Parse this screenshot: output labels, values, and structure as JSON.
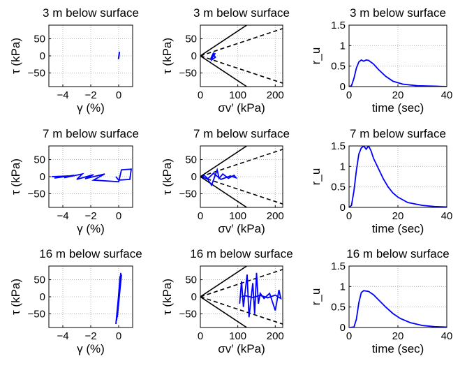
{
  "chart_data": [
    {
      "row": 0,
      "col": 0,
      "type": "line",
      "title": "3 m below surface",
      "xlabel": "γ  (%)",
      "ylabel": "τ  (kPa)",
      "xlim": [
        -5,
        1
      ],
      "ylim": [
        -90,
        90
      ],
      "xticks": [
        -4,
        -2,
        0
      ],
      "yticks": [
        -50,
        0,
        50
      ],
      "grid": true,
      "series": [
        {
          "color": "#0000ff",
          "points": [
            [
              -0.02,
              -10
            ],
            [
              0.05,
              12
            ],
            [
              0.0,
              -6
            ],
            [
              0.06,
              10
            ],
            [
              0.01,
              -4
            ],
            [
              0.05,
              8
            ]
          ]
        }
      ]
    },
    {
      "row": 0,
      "col": 1,
      "type": "line",
      "title": "3 m below surface",
      "xlabel": "σv′ (kPa)",
      "ylabel": "τ  (kPa)",
      "xlim": [
        0,
        220
      ],
      "ylim": [
        -90,
        90
      ],
      "xticks": [
        0,
        100,
        200
      ],
      "yticks": [
        -50,
        0,
        50
      ],
      "grid": true,
      "lines": [
        {
          "style": "solid",
          "points": [
            [
              0,
              0
            ],
            [
              220,
              160
            ]
          ]
        },
        {
          "style": "solid",
          "points": [
            [
              0,
              0
            ],
            [
              220,
              -160
            ]
          ]
        },
        {
          "style": "dashed",
          "points": [
            [
              0,
              0
            ],
            [
              220,
              80
            ]
          ]
        },
        {
          "style": "dashed",
          "points": [
            [
              0,
              0
            ],
            [
              220,
              -80
            ]
          ]
        }
      ],
      "series": [
        {
          "color": "#0000ff",
          "points": [
            [
              28,
              -10
            ],
            [
              40,
              8
            ],
            [
              32,
              -5
            ],
            [
              36,
              10
            ],
            [
              30,
              -12
            ],
            [
              40,
              -4
            ],
            [
              34,
              6
            ],
            [
              28,
              -8
            ],
            [
              38,
              2
            ]
          ]
        }
      ]
    },
    {
      "row": 0,
      "col": 2,
      "type": "line",
      "title": "3 m below surface",
      "xlabel": "time (sec)",
      "ylabel": "r_u",
      "xlim": [
        0,
        40
      ],
      "ylim": [
        0,
        1.5
      ],
      "xticks": [
        0,
        20,
        40
      ],
      "yticks": [
        0,
        0.5,
        1,
        1.5
      ],
      "grid": true,
      "series": [
        {
          "color": "#0000ff",
          "points": [
            [
              0,
              0
            ],
            [
              1,
              0.02
            ],
            [
              2,
              0.2
            ],
            [
              3,
              0.45
            ],
            [
              4,
              0.6
            ],
            [
              5,
              0.65
            ],
            [
              6,
              0.62
            ],
            [
              7,
              0.65
            ],
            [
              8,
              0.64
            ],
            [
              10,
              0.55
            ],
            [
              12,
              0.42
            ],
            [
              15,
              0.25
            ],
            [
              18,
              0.13
            ],
            [
              22,
              0.06
            ],
            [
              28,
              0.02
            ],
            [
              35,
              0.01
            ],
            [
              40,
              0.0
            ]
          ]
        }
      ]
    },
    {
      "row": 1,
      "col": 0,
      "type": "line",
      "title": "7 m below surface",
      "xlabel": "γ  (%)",
      "ylabel": "τ  (kPa)",
      "xlim": [
        -5,
        1
      ],
      "ylim": [
        -90,
        90
      ],
      "xticks": [
        -4,
        -2,
        0
      ],
      "yticks": [
        -50,
        0,
        50
      ],
      "grid": true,
      "series": [
        {
          "color": "#0000ff",
          "points": [
            [
              -4.8,
              0
            ],
            [
              -3.6,
              2
            ],
            [
              -4.6,
              -4
            ],
            [
              -3.2,
              4
            ],
            [
              -3.9,
              -3
            ],
            [
              -2.6,
              8
            ],
            [
              -3.0,
              -8
            ],
            [
              -1.8,
              6
            ],
            [
              -2.4,
              -6
            ],
            [
              -1.0,
              8
            ],
            [
              -1.8,
              -10
            ],
            [
              0.0,
              -15
            ],
            [
              0.2,
              20
            ],
            [
              0.9,
              22
            ],
            [
              0.8,
              -8
            ],
            [
              0.0,
              -10
            ],
            [
              -0.2,
              0
            ]
          ]
        }
      ]
    },
    {
      "row": 1,
      "col": 1,
      "type": "line",
      "title": "7 m below surface",
      "xlabel": "σv′ (kPa)",
      "ylabel": "τ  (kPa)",
      "xlim": [
        0,
        220
      ],
      "ylim": [
        -90,
        90
      ],
      "xticks": [
        0,
        100,
        200
      ],
      "yticks": [
        -50,
        0,
        50
      ],
      "grid": true,
      "lines": [
        {
          "style": "solid",
          "points": [
            [
              0,
              0
            ],
            [
              220,
              160
            ]
          ]
        },
        {
          "style": "solid",
          "points": [
            [
              0,
              0
            ],
            [
              220,
              -160
            ]
          ]
        },
        {
          "style": "dashed",
          "points": [
            [
              0,
              0
            ],
            [
              220,
              80
            ]
          ]
        },
        {
          "style": "dashed",
          "points": [
            [
              0,
              0
            ],
            [
              220,
              -80
            ]
          ]
        }
      ],
      "series": [
        {
          "color": "#0000ff",
          "points": [
            [
              5,
              0
            ],
            [
              20,
              -8
            ],
            [
              30,
              -25
            ],
            [
              45,
              20
            ],
            [
              50,
              -5
            ],
            [
              60,
              8
            ],
            [
              75,
              -5
            ],
            [
              90,
              4
            ],
            [
              95,
              -3
            ],
            [
              80,
              2
            ],
            [
              55,
              -8
            ],
            [
              35,
              10
            ],
            [
              20,
              -6
            ],
            [
              10,
              4
            ],
            [
              5,
              -2
            ]
          ]
        }
      ]
    },
    {
      "row": 1,
      "col": 2,
      "type": "line",
      "title": "7 m below surface",
      "xlabel": "time (sec)",
      "ylabel": "r_u",
      "xlim": [
        0,
        40
      ],
      "ylim": [
        0,
        1.5
      ],
      "xticks": [
        0,
        20,
        40
      ],
      "yticks": [
        0,
        0.5,
        1,
        1.5
      ],
      "grid": true,
      "series": [
        {
          "color": "#0000ff",
          "points": [
            [
              0,
              0
            ],
            [
              1,
              0.05
            ],
            [
              2,
              0.4
            ],
            [
              3,
              0.9
            ],
            [
              4,
              1.3
            ],
            [
              5,
              1.45
            ],
            [
              6,
              1.5
            ],
            [
              7,
              1.42
            ],
            [
              8,
              1.5
            ],
            [
              9,
              1.38
            ],
            [
              10,
              1.2
            ],
            [
              12,
              0.95
            ],
            [
              14,
              0.7
            ],
            [
              16,
              0.5
            ],
            [
              18,
              0.35
            ],
            [
              20,
              0.25
            ],
            [
              24,
              0.12
            ],
            [
              30,
              0.05
            ],
            [
              35,
              0.02
            ],
            [
              40,
              0.01
            ]
          ]
        }
      ]
    },
    {
      "row": 2,
      "col": 0,
      "type": "line",
      "title": "16 m below surface",
      "xlabel": "γ  (%)",
      "ylabel": "τ  (kPa)",
      "xlim": [
        -5,
        1
      ],
      "ylim": [
        -90,
        90
      ],
      "xticks": [
        -4,
        -2,
        0
      ],
      "yticks": [
        -50,
        0,
        50
      ],
      "grid": true,
      "series": [
        {
          "color": "#0000ff",
          "points": [
            [
              -0.2,
              -80
            ],
            [
              0.15,
              70
            ],
            [
              -0.1,
              -60
            ],
            [
              0.2,
              65
            ],
            [
              -0.15,
              -70
            ],
            [
              0.1,
              60
            ],
            [
              0.0,
              0
            ]
          ]
        }
      ]
    },
    {
      "row": 2,
      "col": 1,
      "type": "line",
      "title": "16 m below surface",
      "xlabel": "σv′ (kPa)",
      "ylabel": "τ  (kPa)",
      "xlim": [
        0,
        220
      ],
      "ylim": [
        -90,
        90
      ],
      "xticks": [
        0,
        100,
        200
      ],
      "yticks": [
        -50,
        0,
        50
      ],
      "grid": true,
      "lines": [
        {
          "style": "solid",
          "points": [
            [
              0,
              0
            ],
            [
              220,
              160
            ]
          ]
        },
        {
          "style": "solid",
          "points": [
            [
              0,
              0
            ],
            [
              220,
              -160
            ]
          ]
        },
        {
          "style": "dashed",
          "points": [
            [
              0,
              0
            ],
            [
              220,
              80
            ]
          ]
        },
        {
          "style": "dashed",
          "points": [
            [
              0,
              0
            ],
            [
              220,
              -80
            ]
          ]
        }
      ],
      "series": [
        {
          "color": "#0000ff",
          "points": [
            [
              105,
              -20
            ],
            [
              110,
              45
            ],
            [
              115,
              -30
            ],
            [
              125,
              65
            ],
            [
              130,
              -60
            ],
            [
              140,
              40
            ],
            [
              145,
              -50
            ],
            [
              150,
              70
            ],
            [
              155,
              -20
            ],
            [
              160,
              10
            ],
            [
              170,
              -5
            ],
            [
              185,
              10
            ],
            [
              200,
              -40
            ],
            [
              210,
              20
            ],
            [
              215,
              -5
            ],
            [
              200,
              5
            ],
            [
              180,
              -3
            ],
            [
              160,
              4
            ],
            [
              140,
              -2
            ],
            [
              120,
              3
            ],
            [
              110,
              0
            ]
          ]
        }
      ]
    },
    {
      "row": 2,
      "col": 2,
      "type": "line",
      "title": "16 m below surface",
      "xlabel": "time (sec)",
      "ylabel": "r_u",
      "xlim": [
        0,
        40
      ],
      "ylim": [
        0,
        1.5
      ],
      "xticks": [
        0,
        20,
        40
      ],
      "yticks": [
        0,
        0.5,
        1,
        1.5
      ],
      "grid": true,
      "series": [
        {
          "color": "#0000ff",
          "points": [
            [
              0,
              0
            ],
            [
              2,
              0.01
            ],
            [
              3,
              0.2
            ],
            [
              4,
              0.6
            ],
            [
              5,
              0.85
            ],
            [
              6,
              0.9
            ],
            [
              8,
              0.88
            ],
            [
              10,
              0.8
            ],
            [
              12,
              0.68
            ],
            [
              15,
              0.5
            ],
            [
              18,
              0.34
            ],
            [
              21,
              0.22
            ],
            [
              25,
              0.12
            ],
            [
              30,
              0.05
            ],
            [
              35,
              0.02
            ],
            [
              40,
              0.01
            ]
          ]
        }
      ]
    }
  ]
}
